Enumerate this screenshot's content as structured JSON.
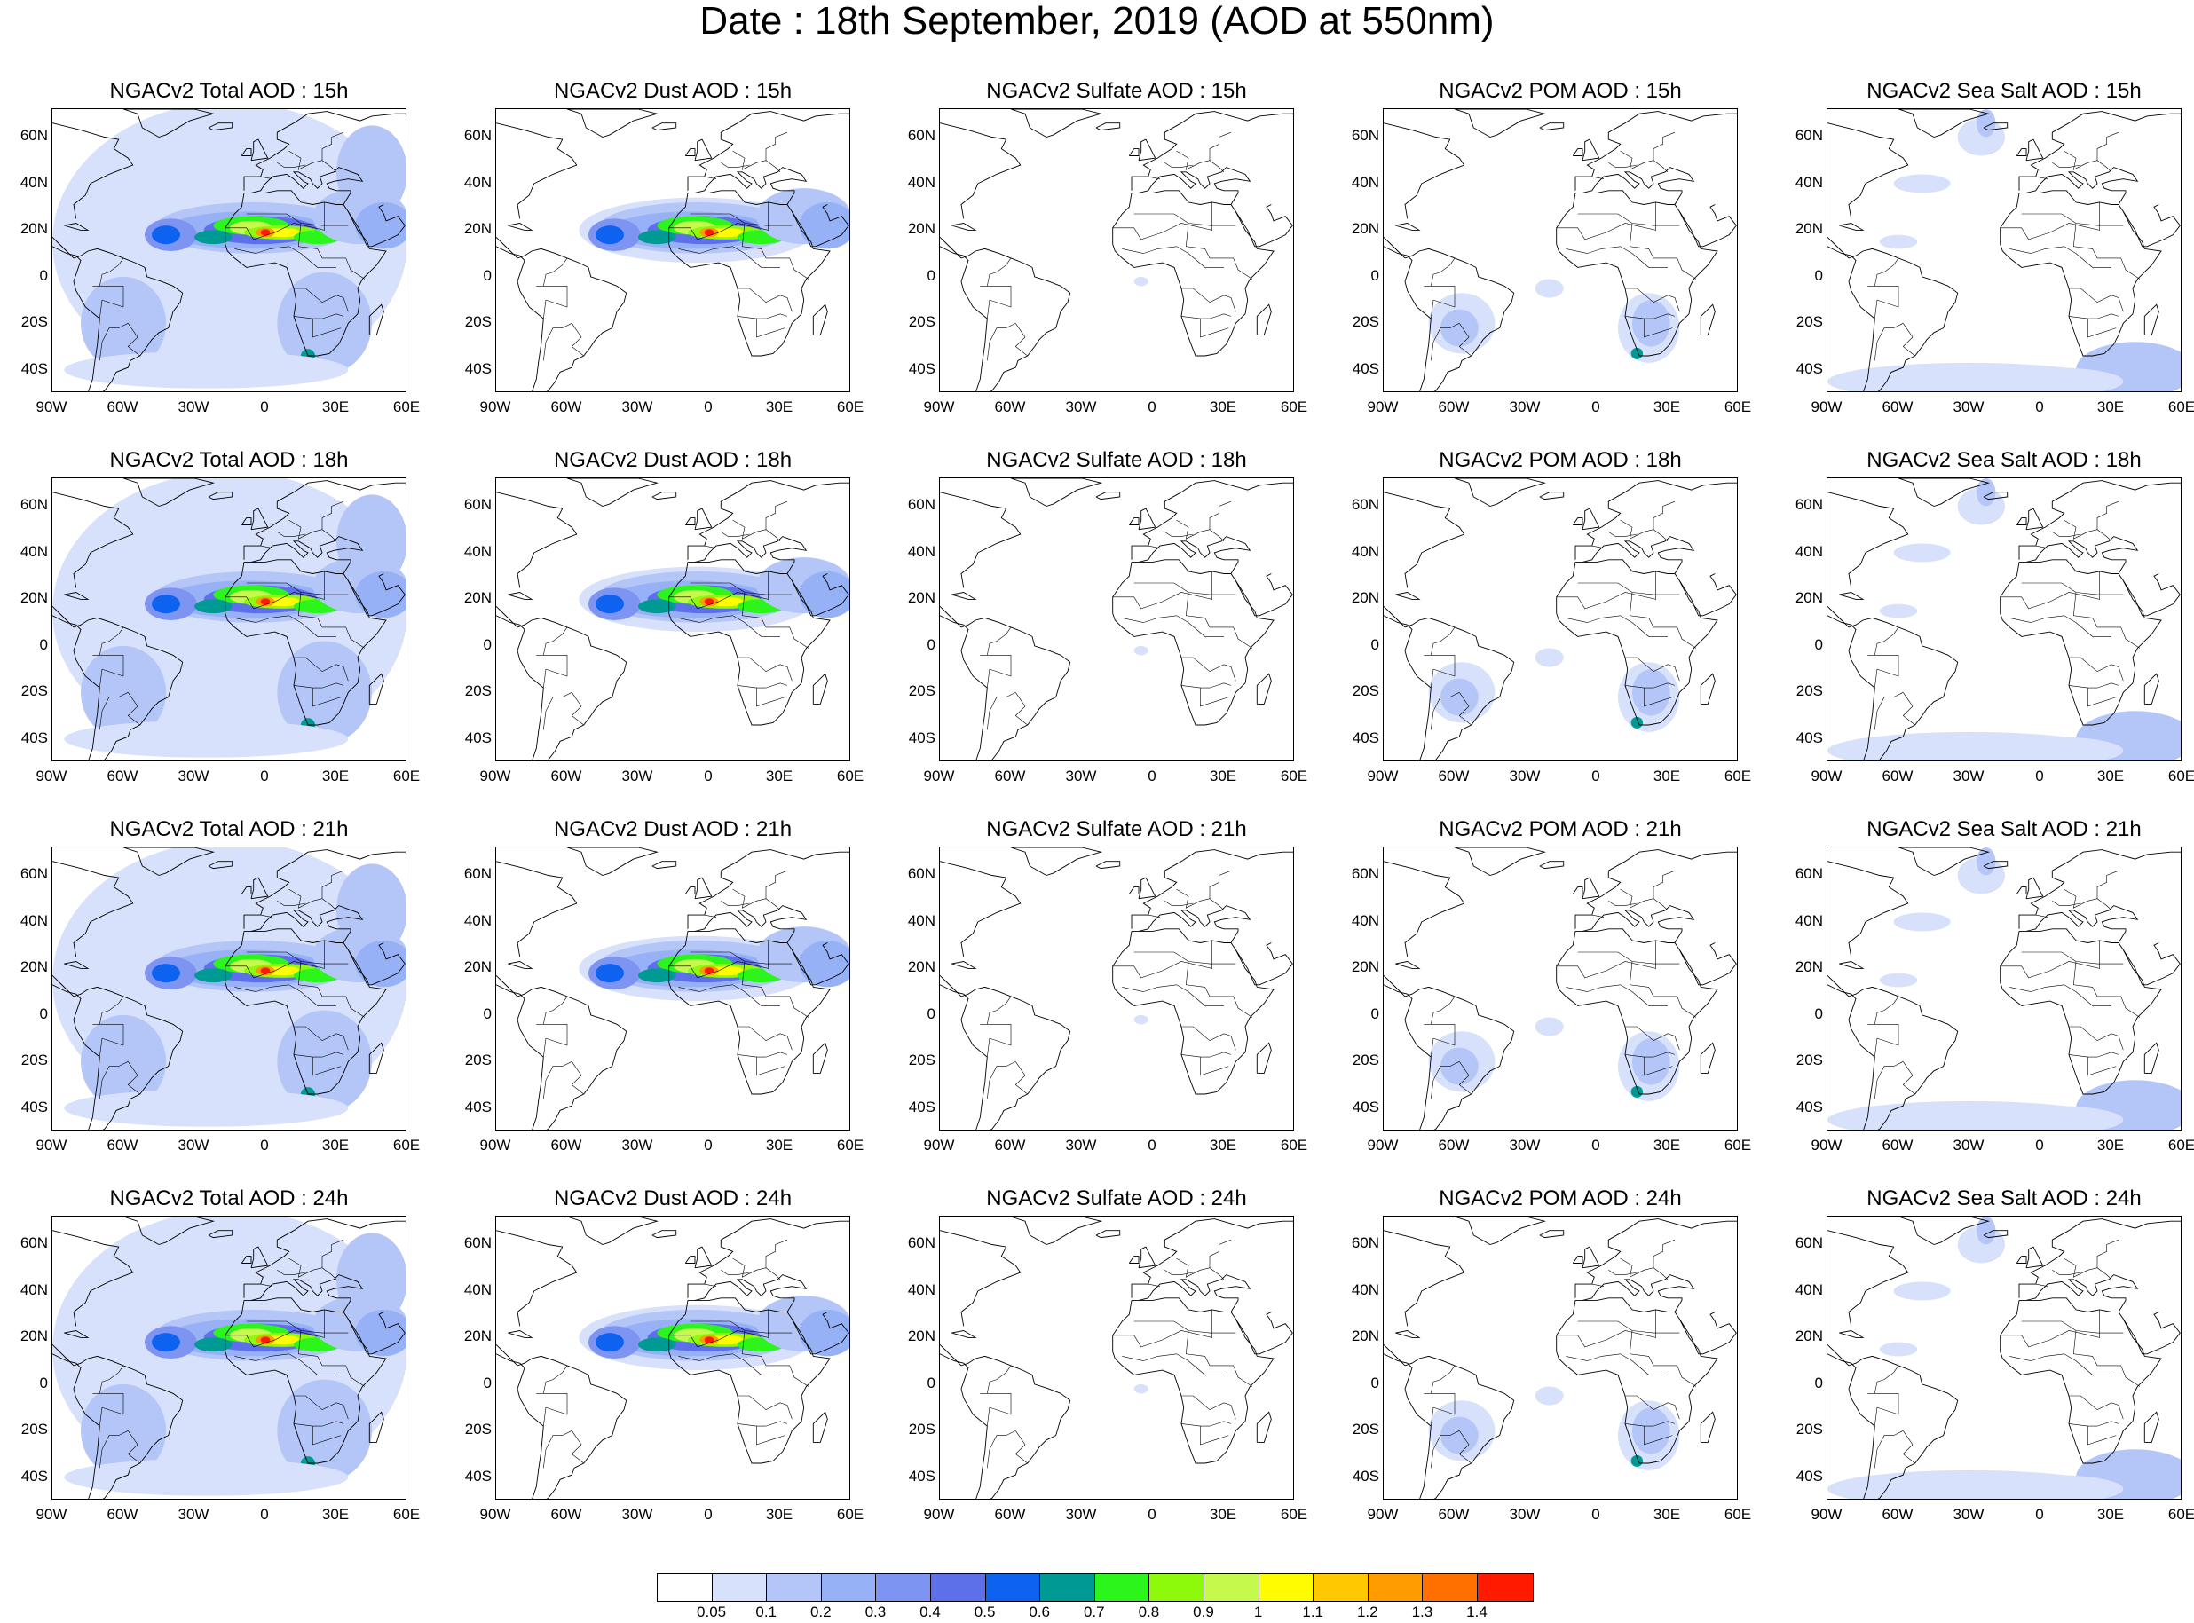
{
  "title": "Date : 18th September, 2019 (AOD at 550nm)",
  "panels": [
    [
      "NGACv2 Total AOD : 15h",
      "NGACv2 Dust AOD : 15h",
      "NGACv2 Sulfate AOD : 15h",
      "NGACv2 POM AOD : 15h",
      "NGACv2 Sea Salt AOD : 15h"
    ],
    [
      "NGACv2 Total AOD : 18h",
      "NGACv2 Dust AOD : 18h",
      "NGACv2 Sulfate AOD : 18h",
      "NGACv2 POM AOD : 18h",
      "NGACv2 Sea Salt AOD : 18h"
    ],
    [
      "NGACv2 Total AOD : 21h",
      "NGACv2 Dust AOD : 21h",
      "NGACv2 Sulfate AOD : 21h",
      "NGACv2 POM AOD : 21h",
      "NGACv2 Sea Salt AOD : 21h"
    ],
    [
      "NGACv2 Total AOD : 24h",
      "NGACv2 Dust AOD : 24h",
      "NGACv2 Sulfate AOD : 24h",
      "NGACv2 POM AOD : 24h",
      "NGACv2 Sea Salt  AOD : 24h"
    ]
  ],
  "lat_ticks": [
    "60N",
    "40N",
    "20N",
    "0",
    "20S",
    "40S"
  ],
  "lon_ticks": [
    "90W",
    "60W",
    "30W",
    "0",
    "30E",
    "60E"
  ],
  "map_extent": {
    "lon": [
      -90,
      60
    ],
    "lat": [
      -50,
      72
    ]
  },
  "colorbar": {
    "labels": [
      "0.05",
      "0.1",
      "0.2",
      "0.3",
      "0.4",
      "0.5",
      "0.6",
      "0.7",
      "0.8",
      "0.9",
      "1",
      "1.1",
      "1.2",
      "1.3",
      "1.4"
    ],
    "colors": [
      "#ffffff",
      "#d7e1fb",
      "#b4c6f8",
      "#97b1f6",
      "#7e94f3",
      "#5d70ea",
      "#0d62f0",
      "#009a94",
      "#2bf51b",
      "#8df90b",
      "#c5f94c",
      "#fffb00",
      "#ffc800",
      "#ff9d00",
      "#ff7000",
      "#ff1a00"
    ]
  }
}
